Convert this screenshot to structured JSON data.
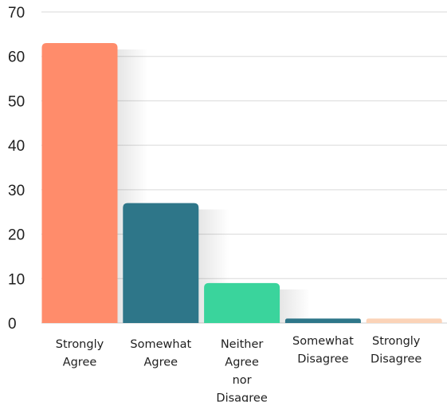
{
  "chart_data": {
    "type": "bar",
    "categories": [
      "Strongly Agree",
      "Somewhat Agree",
      "Neither Agree nor Disagree",
      "Somewhat Disagree",
      "Strongly Disagree"
    ],
    "category_label_lines": [
      [
        "Strongly",
        "Agree"
      ],
      [
        "Somewhat",
        "Agree"
      ],
      [
        "Neither",
        "Agree",
        "nor",
        "Disagree"
      ],
      [
        "Somewhat",
        "Disagree"
      ],
      [
        "Strongly",
        "Disagree"
      ]
    ],
    "values": [
      63,
      27,
      9,
      1,
      1
    ],
    "colors": [
      "#FF8C6B",
      "#2E7689",
      "#3AD49C",
      "#2E7689",
      "#FBD3B8"
    ],
    "title": "",
    "xlabel": "",
    "ylabel": "",
    "ylim": [
      0,
      70
    ],
    "yticks": [
      0,
      10,
      20,
      30,
      40,
      50,
      60,
      70
    ],
    "grid": true,
    "legend": "none"
  }
}
